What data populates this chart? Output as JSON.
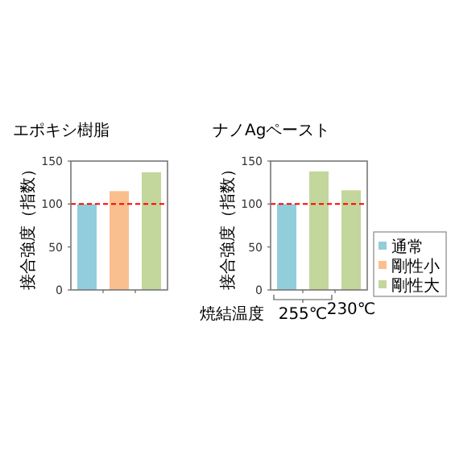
{
  "chart_data": [
    {
      "type": "bar",
      "title": "エポキシ樹脂",
      "ylabel": "接合強度（指数）",
      "categories": [
        null,
        null,
        null
      ],
      "series": [
        {
          "color": "#92cddc",
          "values": [
            100,
            null,
            null
          ]
        },
        {
          "color": "#fabf8f",
          "values": [
            null,
            115,
            null
          ]
        },
        {
          "color": "#c3d69b",
          "values": [
            null,
            null,
            137
          ]
        }
      ],
      "ylim": [
        0,
        150
      ],
      "yticks": [
        0,
        50,
        100,
        150
      ],
      "ref_lines": [
        {
          "axis": "y",
          "value": 100,
          "color": "#ff0000",
          "line_style": "dashed"
        }
      ]
    },
    {
      "type": "bar",
      "title": "ナノAgペースト",
      "ylabel": "接合強度（指数）",
      "xlabel": "焼結温度",
      "categories": [
        "255℃",
        "230℃"
      ],
      "series": [
        {
          "name": "通常",
          "color": "#92cddc",
          "values": [
            100,
            null
          ]
        },
        {
          "name": "剛性小",
          "color": "#fabf8f",
          "values": [
            null,
            null
          ]
        },
        {
          "name": "剛性大",
          "color": "#c3d69b",
          "values": [
            138,
            116
          ]
        }
      ],
      "ylim": [
        0,
        150
      ],
      "yticks": [
        0,
        50,
        100,
        150
      ],
      "ref_lines": [
        {
          "axis": "y",
          "value": 100,
          "color": "#ff0000",
          "line_style": "dashed"
        }
      ],
      "legend": "right"
    }
  ]
}
